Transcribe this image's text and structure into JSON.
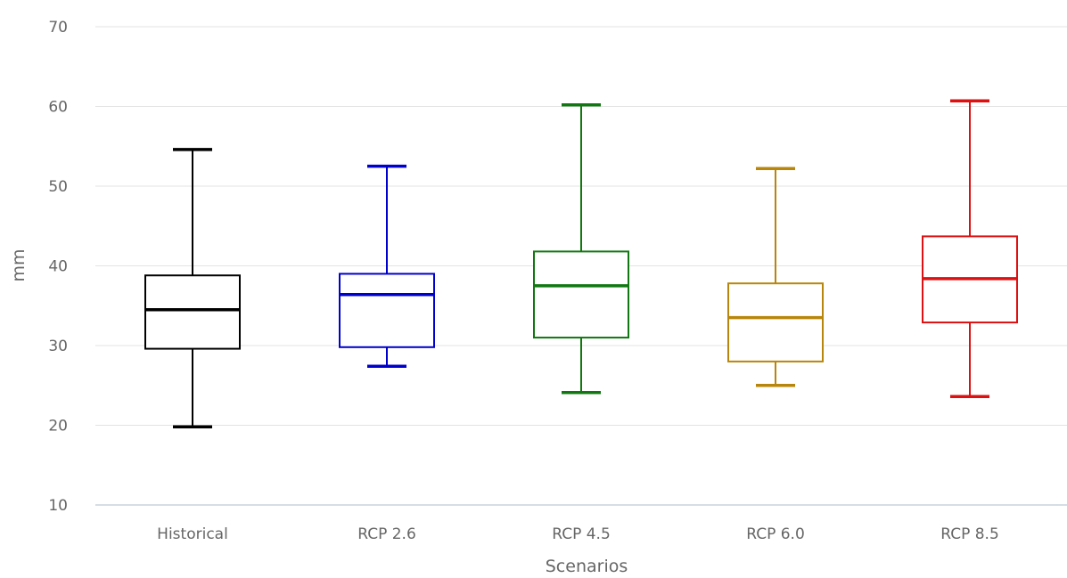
{
  "chart_data": {
    "type": "boxplot",
    "title": "",
    "xlabel": "Scenarios",
    "ylabel": "mm",
    "ylim": [
      10,
      70
    ],
    "yticks": [
      10,
      20,
      30,
      40,
      50,
      60,
      70
    ],
    "grid": true,
    "legend": "none",
    "categories": [
      "Historical",
      "RCP 2.6",
      "RCP 4.5",
      "RCP 6.0",
      "RCP 8.5"
    ],
    "series": [
      {
        "category": "Historical",
        "color": "#000000",
        "min": 19.8,
        "q1": 29.6,
        "median": 34.5,
        "q3": 38.8,
        "max": 54.6
      },
      {
        "category": "RCP 2.6",
        "color": "#0000cc",
        "min": 27.4,
        "q1": 29.8,
        "median": 36.4,
        "q3": 39.0,
        "max": 52.5
      },
      {
        "category": "RCP 4.5",
        "color": "#117711",
        "min": 24.1,
        "q1": 31.0,
        "median": 37.5,
        "q3": 41.8,
        "max": 60.2
      },
      {
        "category": "RCP 6.0",
        "color": "#b8860b",
        "min": 25.0,
        "q1": 28.0,
        "median": 33.5,
        "q3": 37.8,
        "max": 52.2
      },
      {
        "category": "RCP 8.5",
        "color": "#dd1111",
        "min": 23.6,
        "q1": 32.9,
        "median": 38.4,
        "q3": 43.7,
        "max": 60.7
      }
    ]
  }
}
